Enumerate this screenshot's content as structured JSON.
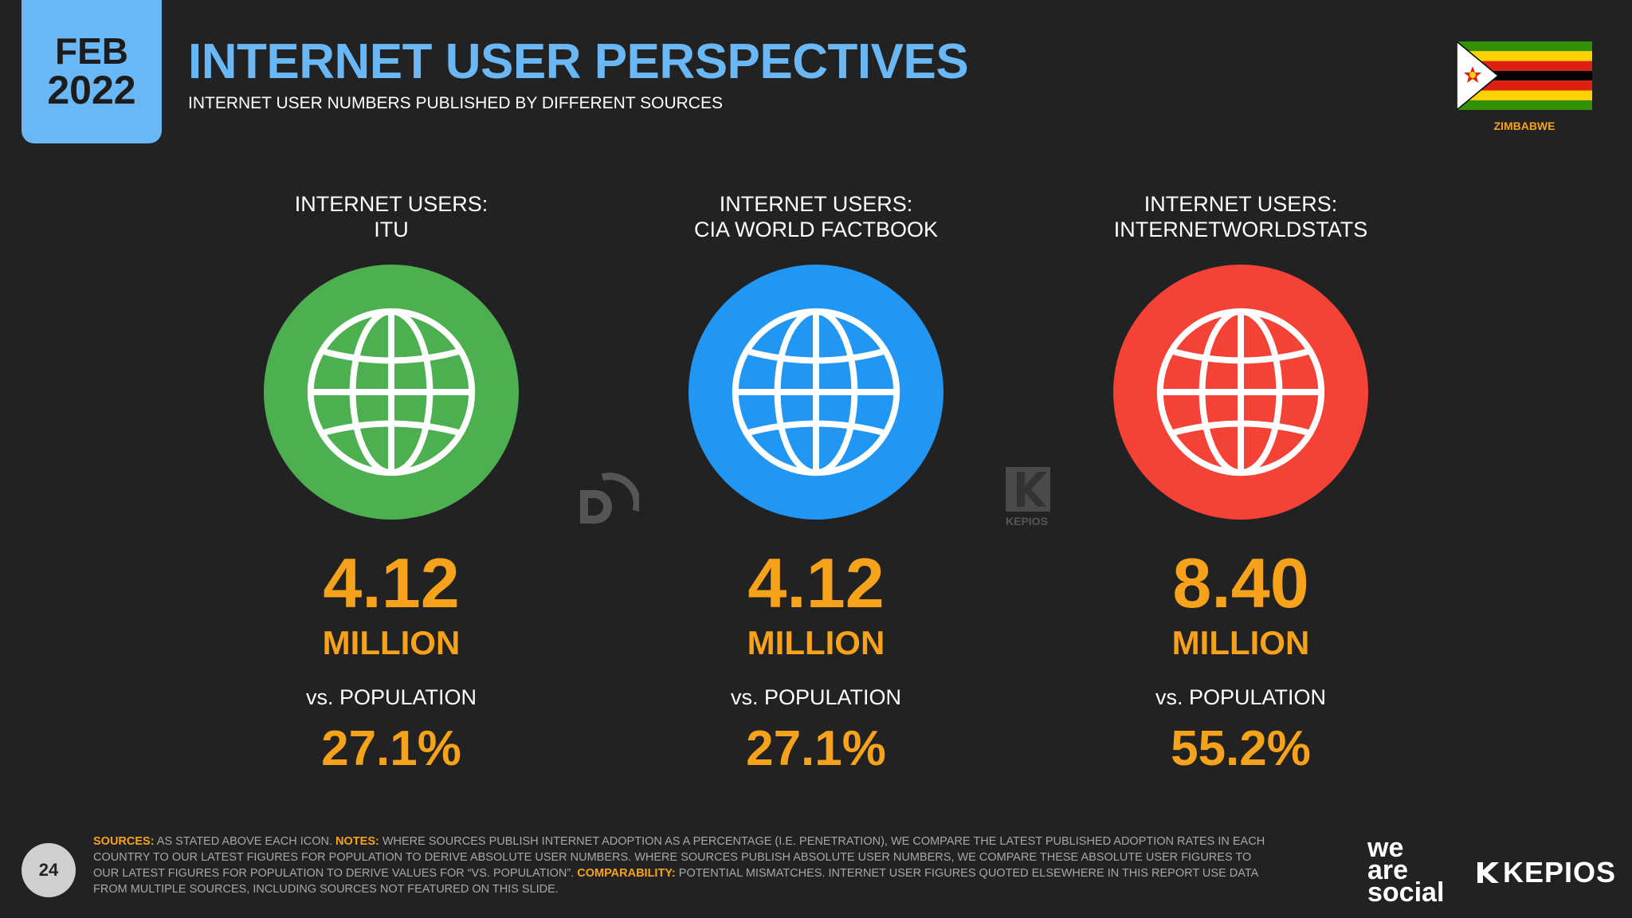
{
  "header": {
    "month": "FEB",
    "year": "2022",
    "title": "INTERNET USER PERSPECTIVES",
    "subtitle": "INTERNET USER NUMBERS PUBLISHED BY DIFFERENT SOURCES"
  },
  "country": {
    "name": "ZIMBABWE",
    "flag_icon": "zimbabwe-flag-icon"
  },
  "columns": [
    {
      "label_line1": "INTERNET USERS:",
      "label_line2": "ITU",
      "value": "4.12",
      "unit": "MILLION",
      "vs_label": "vs. POPULATION",
      "percent": "27.1%",
      "color": "#4caf50",
      "icon": "globe-icon"
    },
    {
      "label_line1": "INTERNET USERS:",
      "label_line2": "CIA WORLD FACTBOOK",
      "value": "4.12",
      "unit": "MILLION",
      "vs_label": "vs. POPULATION",
      "percent": "27.1%",
      "color": "#2196f3",
      "icon": "globe-icon"
    },
    {
      "label_line1": "INTERNET USERS:",
      "label_line2": "INTERNETWORLDSTATS",
      "value": "8.40",
      "unit": "MILLION",
      "vs_label": "vs. POPULATION",
      "percent": "55.2%",
      "color": "#f44336",
      "icon": "globe-icon"
    }
  ],
  "footer": {
    "page_number": "24",
    "sources_label": "SOURCES:",
    "sources_text": " AS STATED ABOVE EACH ICON. ",
    "notes_label": "NOTES:",
    "notes_text": " WHERE SOURCES PUBLISH INTERNET ADOPTION AS A PERCENTAGE (I.E. PENETRATION), WE COMPARE THE LATEST PUBLISHED ADOPTION RATES IN EACH COUNTRY TO OUR LATEST FIGURES FOR POPULATION TO DERIVE ABSOLUTE USER NUMBERS. WHERE SOURCES PUBLISH ABSOLUTE USER NUMBERS, WE COMPARE THESE ABSOLUTE USER FIGURES TO OUR LATEST FIGURES FOR POPULATION TO DERIVE VALUES FOR “vs. POPULATION”. ",
    "comparability_label": "COMPARABILITY:",
    "comparability_text": " POTENTIAL MISMATCHES. INTERNET USER FIGURES QUOTED ELSEWHERE IN THIS REPORT USE DATA FROM MULTIPLE SOURCES, INCLUDING SOURCES NOT FEATURED ON THIS SLIDE."
  },
  "branding": {
    "was_line1": "we",
    "was_line2": "are",
    "was_line3": "social",
    "kepios": "KEPIOS",
    "watermark_kepios": "KEPIOS"
  }
}
